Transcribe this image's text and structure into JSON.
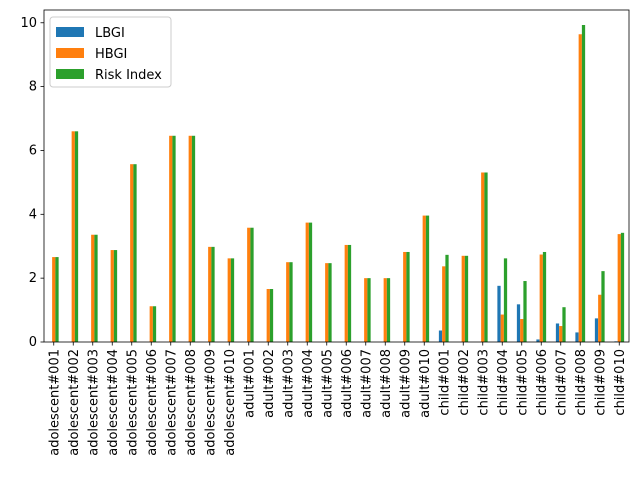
{
  "chart_data": {
    "type": "bar",
    "title": "",
    "xlabel": "",
    "ylabel": "",
    "ylim": [
      0,
      10.4
    ],
    "yticks": [
      0,
      2,
      4,
      6,
      8,
      10
    ],
    "grid": false,
    "legend_position": "top-left",
    "categories": [
      "adolescent#001",
      "adolescent#002",
      "adolescent#003",
      "adolescent#004",
      "adolescent#005",
      "adolescent#006",
      "adolescent#007",
      "adolescent#008",
      "adolescent#009",
      "adolescent#010",
      "adult#001",
      "adult#002",
      "adult#003",
      "adult#004",
      "adult#005",
      "adult#006",
      "adult#007",
      "adult#008",
      "adult#009",
      "adult#010",
      "child#001",
      "child#002",
      "child#003",
      "child#004",
      "child#005",
      "child#006",
      "child#007",
      "child#008",
      "child#009",
      "child#010"
    ],
    "series": [
      {
        "name": "LBGI",
        "color": "#1f77b4",
        "values": [
          0,
          0,
          0,
          0,
          0,
          0,
          0,
          0,
          0,
          0,
          0,
          0,
          0,
          0,
          0,
          0,
          0,
          0,
          0,
          0,
          0.36,
          0,
          0,
          1.76,
          1.18,
          0.08,
          0.58,
          0.3,
          0.74,
          0.02
        ]
      },
      {
        "name": "HBGI",
        "color": "#ff7f0e",
        "values": [
          2.66,
          6.6,
          3.36,
          2.88,
          5.57,
          1.12,
          6.46,
          6.46,
          2.98,
          2.62,
          3.58,
          1.66,
          2.5,
          3.74,
          2.47,
          3.04,
          2.0,
          2.0,
          2.82,
          3.96,
          2.37,
          2.7,
          5.31,
          0.86,
          0.72,
          2.74,
          0.5,
          9.64,
          1.48,
          3.38
        ]
      },
      {
        "name": "Risk Index",
        "color": "#2ca02c",
        "values": [
          2.66,
          6.6,
          3.36,
          2.88,
          5.57,
          1.12,
          6.46,
          6.46,
          2.98,
          2.62,
          3.58,
          1.66,
          2.5,
          3.74,
          2.47,
          3.04,
          2.0,
          2.0,
          2.82,
          3.96,
          2.73,
          2.7,
          5.31,
          2.62,
          1.91,
          2.82,
          1.09,
          9.93,
          2.22,
          3.42
        ]
      }
    ]
  }
}
